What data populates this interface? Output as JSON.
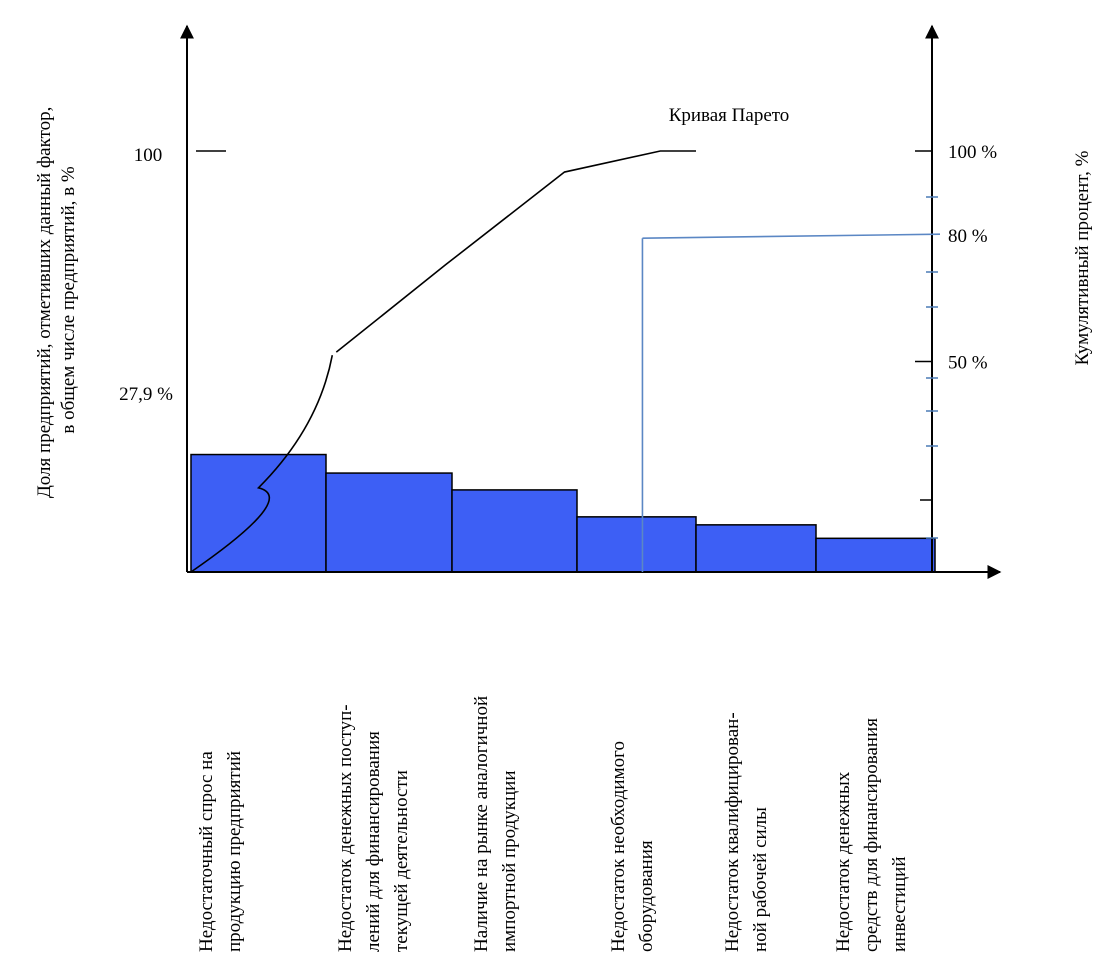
{
  "chart_data": {
    "type": "bar",
    "categories": [
      [
        "Недостаточный спрос на",
        "продукцию предприятий"
      ],
      [
        "Недостаток денежных поступ-",
        "лений для финансирования",
        "текущей деятельности"
      ],
      [
        "Наличие на рынке аналогичной",
        "импортной продукции"
      ],
      [
        "Недостаток необходимого",
        "оборудования"
      ],
      [
        "Недостаток квалифицирован-",
        "ной рабочей силы"
      ],
      [
        "Недостаток денежных",
        "средств для финансирования",
        "инвестиций"
      ]
    ],
    "values": [
      27.9,
      23.5,
      19.5,
      13.1,
      11.2,
      8.0
    ],
    "cumulative_line": {
      "label": "Кривая Парето",
      "x": [
        0,
        0.5,
        1.05,
        1.95,
        2.9,
        3.7,
        4.0
      ],
      "y": [
        0,
        20,
        51.5,
        73,
        95,
        100,
        100
      ]
    },
    "threshold": {
      "y": 80,
      "x": 3.55
    },
    "left_axis": {
      "label": [
        "Доля  предприятий, отметивших данный фактор,",
        "в общем числе предприятий, в %"
      ],
      "tick_labels": [
        {
          "value": 100,
          "text": "100"
        },
        {
          "value": 27.9,
          "text": "27,9 %"
        }
      ],
      "ylim": [
        0,
        100
      ]
    },
    "right_axis": {
      "label": "Кумулятивный процент, %",
      "tick_labels": [
        {
          "value": 100,
          "text": "100 %"
        },
        {
          "value": 80,
          "text": "80 %"
        },
        {
          "value": 50,
          "text": "50 %"
        }
      ],
      "ylim": [
        0,
        100
      ]
    }
  }
}
